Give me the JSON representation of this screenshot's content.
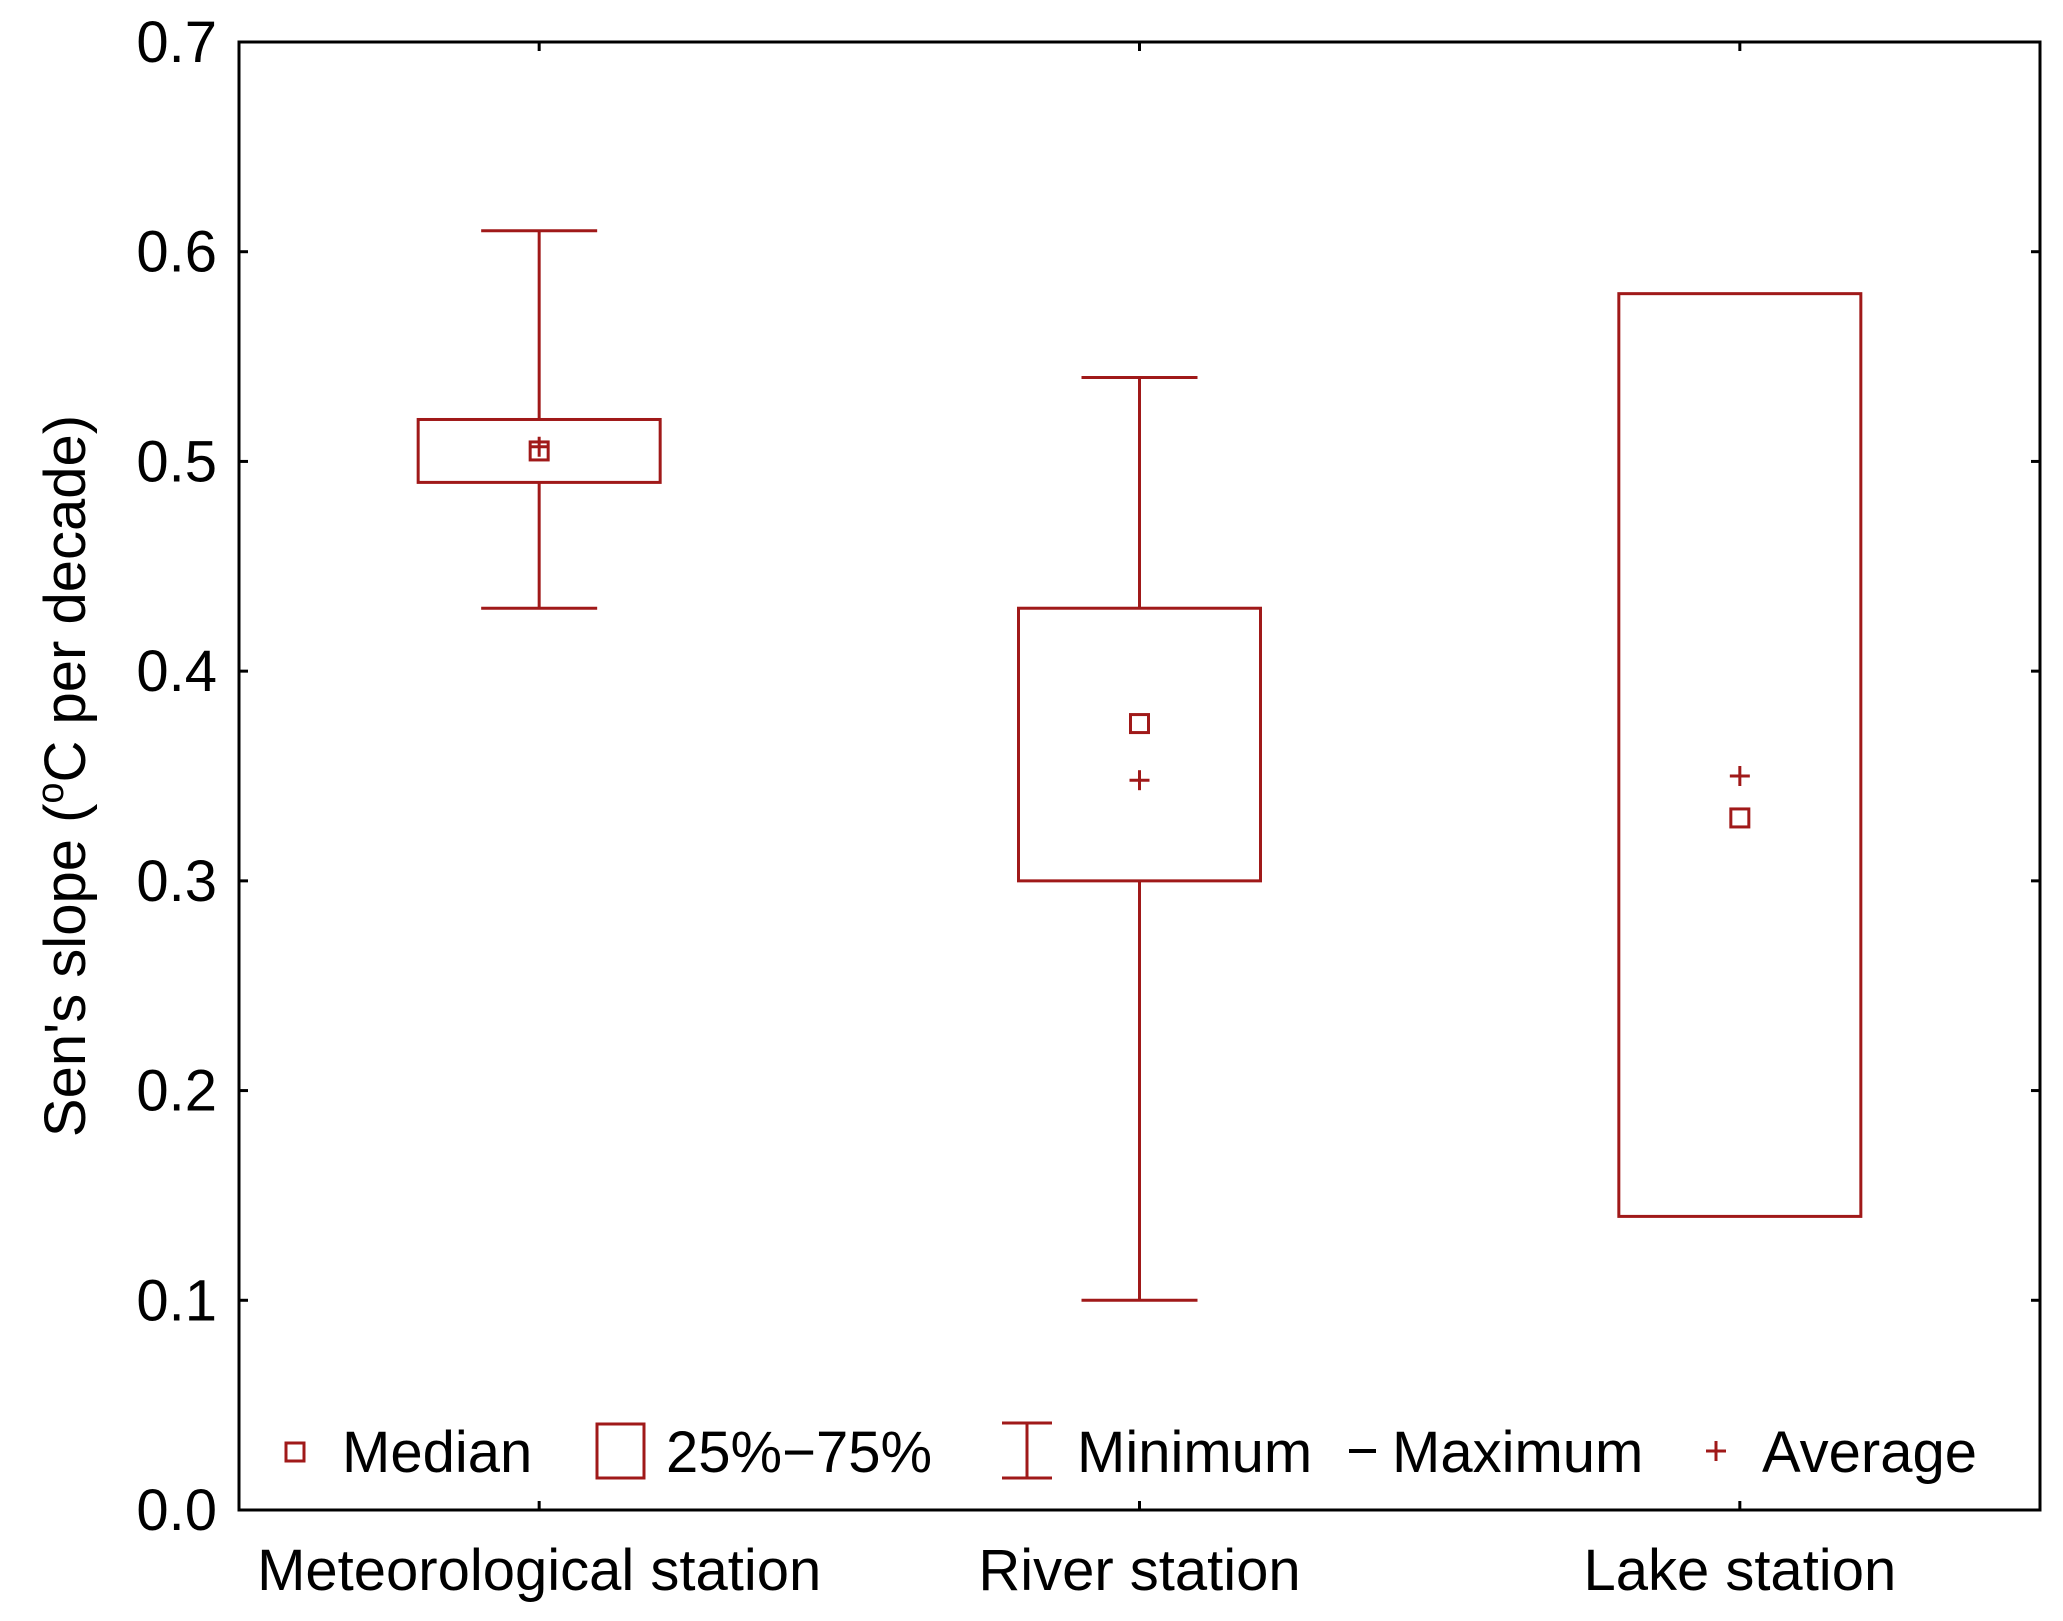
{
  "chart_data": {
    "type": "box",
    "ylabel": "Sen's slope (",
    "ylabel_sup": "o",
    "ylabel_tail": "C per decade)",
    "ylim": [
      0.0,
      0.7
    ],
    "yticks": [
      "0.0",
      "0.1",
      "0.2",
      "0.3",
      "0.4",
      "0.5",
      "0.6",
      "0.7"
    ],
    "yticks_values": [
      0.0,
      0.1,
      0.2,
      0.3,
      0.4,
      0.5,
      0.6,
      0.7
    ],
    "categories": [
      "Meteorological station",
      "River station",
      "Lake station"
    ],
    "boxes": [
      {
        "category": "Meteorological station",
        "min": 0.43,
        "q1": 0.49,
        "median": 0.505,
        "q3": 0.52,
        "max": 0.61,
        "average": 0.507
      },
      {
        "category": "River station",
        "min": 0.1,
        "q1": 0.3,
        "median": 0.375,
        "q3": 0.43,
        "max": 0.54,
        "average": 0.348
      },
      {
        "category": "Lake station",
        "min": null,
        "q1": 0.14,
        "median": 0.33,
        "q3": 0.58,
        "max": null,
        "average": 0.35
      }
    ],
    "legend": {
      "placement": "bottom",
      "median": "Median",
      "box": "25%−75%",
      "range_min": "Minimum",
      "range_max": "Maximum",
      "average": "Average"
    },
    "color": "#a01919",
    "grid": false
  }
}
